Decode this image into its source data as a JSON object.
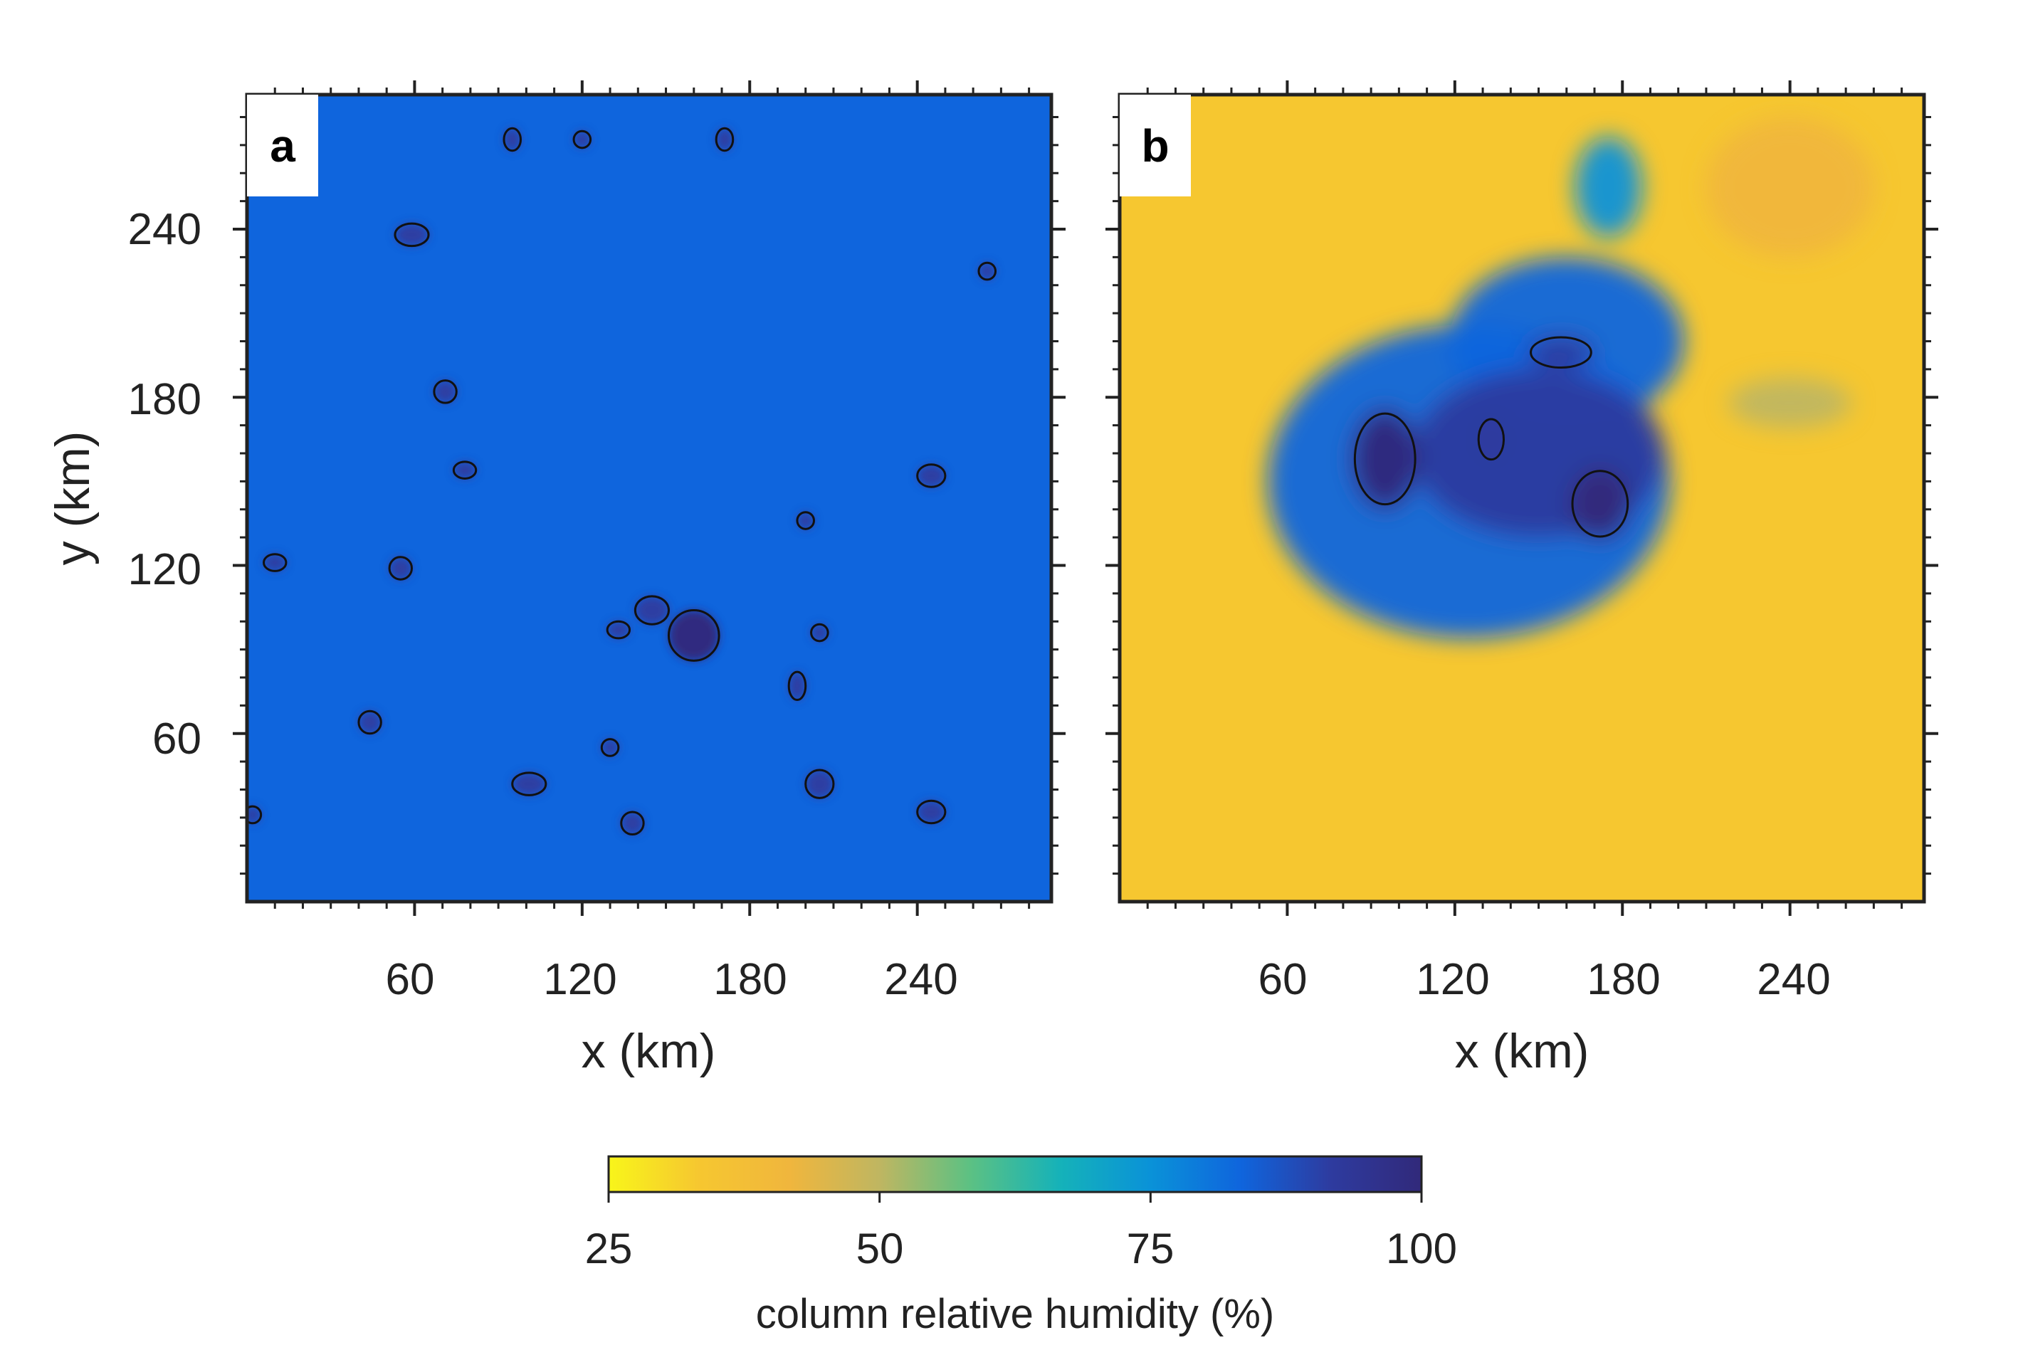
{
  "chart_data": {
    "type": "heatmap",
    "colormap": {
      "title": "column relative humidity (%)",
      "ticks": [
        "25",
        "50",
        "75",
        "100"
      ],
      "range": [
        25,
        100
      ],
      "stops": [
        "#f8f51a",
        "#f6c730",
        "#f0b63d",
        "#bfb661",
        "#5cc183",
        "#15b2b9",
        "#0a92d8",
        "#0f65dd",
        "#2e3b9f",
        "#31297a"
      ]
    },
    "panels": [
      {
        "label": "a",
        "xlabel": "x (km)",
        "ylabel": "y (km)",
        "xlim": [
          0,
          288
        ],
        "ylim": [
          0,
          288
        ],
        "xticks": [
          "60",
          "120",
          "180",
          "240"
        ],
        "yticks": [
          "60",
          "120",
          "180",
          "240"
        ],
        "background_rh": 83,
        "features": [
          {
            "x": 160,
            "y": 95,
            "rx": 9,
            "ry": 9,
            "rh": 96
          },
          {
            "x": 145,
            "y": 104,
            "rx": 6,
            "ry": 5,
            "rh": 93
          },
          {
            "x": 59,
            "y": 238,
            "rx": 6,
            "ry": 4,
            "rh": 95
          },
          {
            "x": 71,
            "y": 182,
            "rx": 4,
            "ry": 4,
            "rh": 95
          },
          {
            "x": 44,
            "y": 64,
            "rx": 4,
            "ry": 4,
            "rh": 95
          },
          {
            "x": 10,
            "y": 121,
            "rx": 4,
            "ry": 3,
            "rh": 94
          },
          {
            "x": 101,
            "y": 42,
            "rx": 6,
            "ry": 4,
            "rh": 94
          },
          {
            "x": 205,
            "y": 42,
            "rx": 5,
            "ry": 5,
            "rh": 95
          },
          {
            "x": 245,
            "y": 32,
            "rx": 5,
            "ry": 4,
            "rh": 95
          },
          {
            "x": 197,
            "y": 77,
            "rx": 3,
            "ry": 5,
            "rh": 94
          },
          {
            "x": 245,
            "y": 152,
            "rx": 5,
            "ry": 4,
            "rh": 90
          },
          {
            "x": 55,
            "y": 119,
            "rx": 4,
            "ry": 4,
            "rh": 90
          },
          {
            "x": 78,
            "y": 154,
            "rx": 4,
            "ry": 3,
            "rh": 90
          },
          {
            "x": 138,
            "y": 28,
            "rx": 4,
            "ry": 4,
            "rh": 90
          },
          {
            "x": 2,
            "y": 31,
            "rx": 3,
            "ry": 3,
            "rh": 95
          },
          {
            "x": 95,
            "y": 272,
            "rx": 3,
            "ry": 4,
            "rh": 91
          },
          {
            "x": 171,
            "y": 272,
            "rx": 3,
            "ry": 4,
            "rh": 92
          },
          {
            "x": 265,
            "y": 225,
            "rx": 3,
            "ry": 3,
            "rh": 91
          },
          {
            "x": 205,
            "y": 96,
            "rx": 3,
            "ry": 3,
            "rh": 89
          },
          {
            "x": 130,
            "y": 55,
            "rx": 3,
            "ry": 3,
            "rh": 89
          },
          {
            "x": 120,
            "y": 272,
            "rx": 3,
            "ry": 3,
            "rh": 88
          },
          {
            "x": 133,
            "y": 97,
            "rx": 4,
            "ry": 3,
            "rh": 88
          },
          {
            "x": 200,
            "y": 136,
            "rx": 3,
            "ry": 3,
            "rh": 88
          }
        ]
      },
      {
        "label": "b",
        "xlabel": "x (km)",
        "xlim": [
          0,
          288
        ],
        "ylim": [
          0,
          288
        ],
        "xticks": [
          "60",
          "120",
          "180",
          "240"
        ],
        "background_rh": 33,
        "features": [
          {
            "x": 125,
            "y": 150,
            "rx": 72,
            "ry": 56,
            "rh": 84
          },
          {
            "x": 160,
            "y": 200,
            "rx": 42,
            "ry": 30,
            "rh": 80
          },
          {
            "x": 175,
            "y": 255,
            "rx": 12,
            "ry": 18,
            "rh": 74
          },
          {
            "x": 150,
            "y": 160,
            "rx": 45,
            "ry": 30,
            "rh": 90
          },
          {
            "x": 95,
            "y": 158,
            "rx": 12,
            "ry": 18,
            "rh": 97
          },
          {
            "x": 172,
            "y": 142,
            "rx": 11,
            "ry": 13,
            "rh": 97
          },
          {
            "x": 133,
            "y": 165,
            "rx": 5,
            "ry": 8,
            "rh": 95
          },
          {
            "x": 158,
            "y": 196,
            "rx": 12,
            "ry": 6,
            "rh": 91
          },
          {
            "x": 240,
            "y": 178,
            "rx": 22,
            "ry": 9,
            "rh": 50
          },
          {
            "x": 240,
            "y": 255,
            "rx": 30,
            "ry": 25,
            "rh": 38
          }
        ]
      }
    ]
  }
}
